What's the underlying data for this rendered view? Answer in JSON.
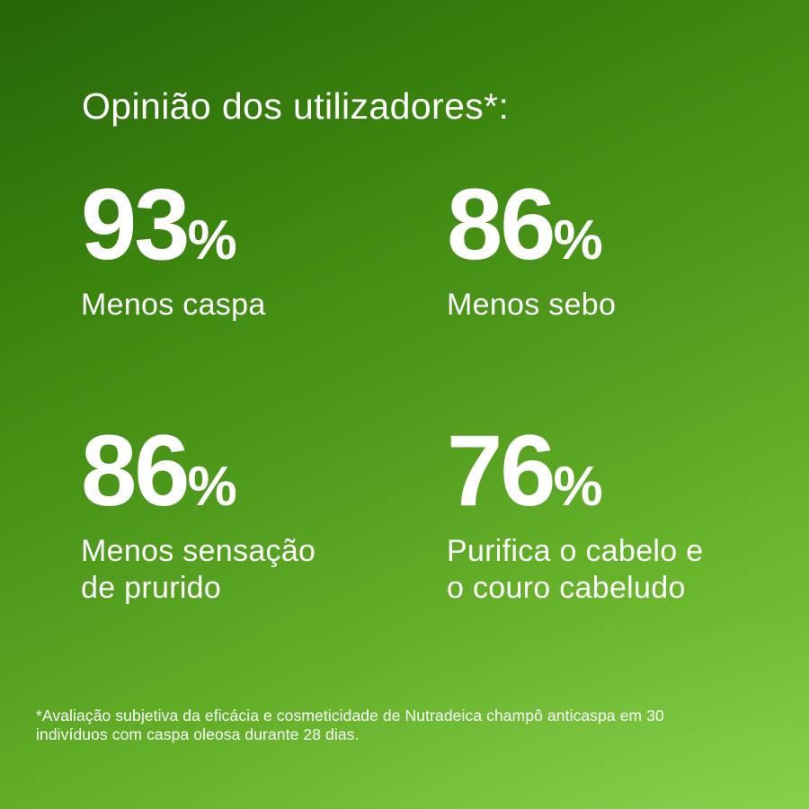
{
  "title": "Opinião dos utilizadores*:",
  "stats": [
    {
      "value": "93",
      "unit": "%",
      "label": "Menos caspa"
    },
    {
      "value": "86",
      "unit": "%",
      "label": "Menos sebo"
    },
    {
      "value": "86",
      "unit": "%",
      "label": "Menos sensação\nde prurido"
    },
    {
      "value": "76",
      "unit": "%",
      "label": "Purifica o cabelo e\no couro cabeludo"
    }
  ],
  "footnote": "*Avaliação subjetiva da eficácia e cosmeticidade de Nutradeica champô anticaspa em 30\nindivíduos com caspa oleosa durante 28 dias.",
  "colors": {
    "background_top_left": "#2a6a06",
    "background_bottom_right": "#7ecd3e",
    "text": "#ffffff"
  },
  "chart_data": {
    "type": "table",
    "title": "Opinião dos utilizadores*:",
    "categories": [
      "Menos caspa",
      "Menos sebo",
      "Menos sensação de prurido",
      "Purifica o cabelo e o couro cabeludo"
    ],
    "values": [
      93,
      86,
      86,
      76
    ],
    "unit": "%",
    "footnote": "*Avaliação subjetiva da eficácia e cosmeticidade de Nutradeica champô anticaspa em 30 indivíduos com caspa oleosa durante 28 dias."
  }
}
